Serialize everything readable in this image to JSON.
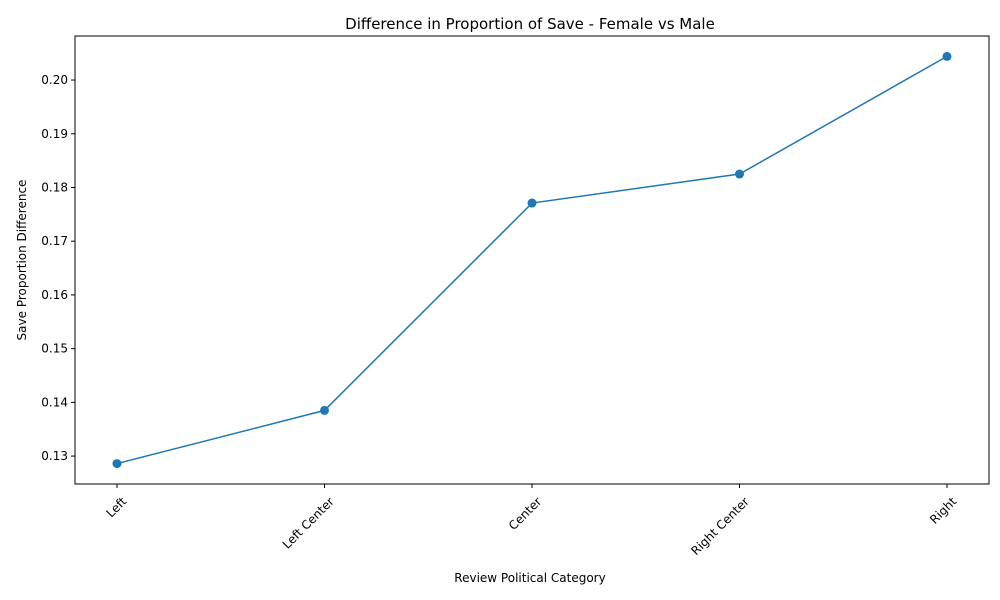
{
  "chart_data": {
    "type": "line",
    "title": "Difference in Proportion of Save - Female vs Male",
    "xlabel": "Review Political Category",
    "ylabel": "Save Proportion Difference",
    "categories": [
      "Left",
      "Left Center",
      "Center",
      "Right Center",
      "Right"
    ],
    "series": [
      {
        "values": [
          0.1286,
          0.1385,
          0.1771,
          0.1825,
          0.2044
        ]
      }
    ],
    "ylim": [
      0.1248,
      0.2082
    ],
    "yticks": [
      "0.13",
      "0.14",
      "0.15",
      "0.16",
      "0.17",
      "0.18",
      "0.19",
      "0.20"
    ],
    "line_color": "#1f77b4",
    "marker": "circle",
    "grid": false,
    "x_tick_rotation_deg": 45
  }
}
